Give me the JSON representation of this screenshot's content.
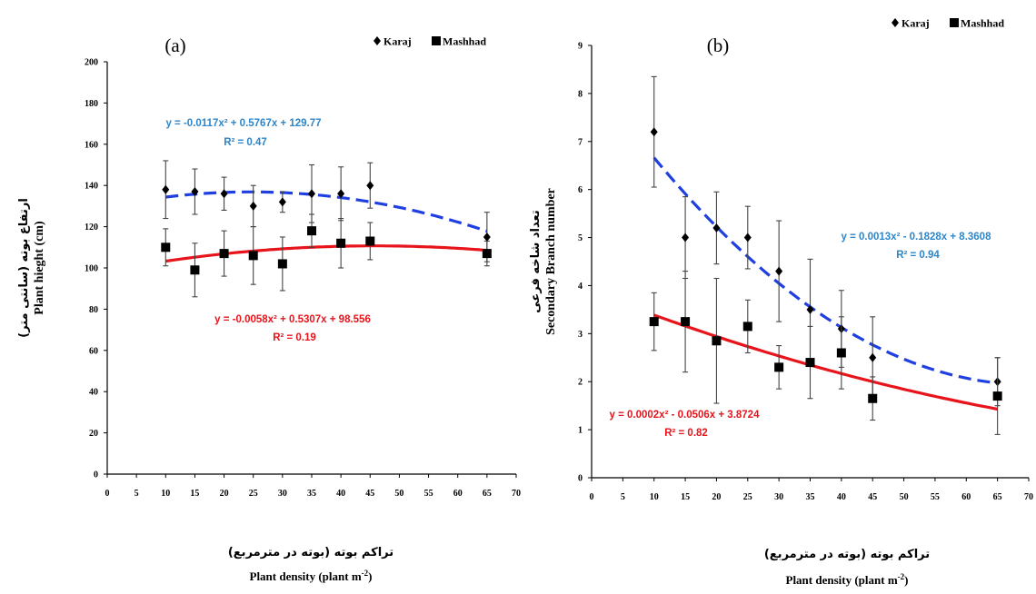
{
  "chart_data": [
    {
      "type": "scatter",
      "panel_label": "(a)",
      "legend": [
        "Karaj",
        "Mashhad"
      ],
      "legend_position": "top-right",
      "xlabel_fa": "تراکم بوته (بوته در مترمربع)",
      "xlabel": "Plant density (plant m",
      "xlabel_sup": "-2",
      "xlabel_tail": ")",
      "ylabel_fa": "ارتفاع بوته (سانتی متر)",
      "ylabel": "Plant hieght (cm)",
      "xlim": [
        0,
        70
      ],
      "ylim": [
        0,
        200
      ],
      "xticks": [
        0,
        5,
        10,
        15,
        20,
        25,
        30,
        35,
        40,
        45,
        50,
        55,
        60,
        65,
        70
      ],
      "yticks": [
        0,
        20,
        40,
        60,
        80,
        100,
        120,
        140,
        160,
        180,
        200
      ],
      "series": [
        {
          "name": "Karaj",
          "marker": "diamond",
          "color": "#000000",
          "x": [
            10,
            15,
            20,
            25,
            30,
            35,
            40,
            45,
            65
          ],
          "y": [
            138,
            137,
            136,
            130,
            132,
            136,
            136,
            140,
            115
          ],
          "err": [
            14,
            11,
            8,
            10,
            5,
            14,
            13,
            11,
            12
          ],
          "trend": {
            "a": -0.0117,
            "b": 0.5767,
            "c": 129.77,
            "color": "#1f3fe0",
            "style": "dashed"
          },
          "equation": "y = -0.0117x² + 0.5767x + 129.77",
          "r2": "R² = 0.47",
          "equation_color": "#2e86c8"
        },
        {
          "name": "Mashhad",
          "marker": "square",
          "color": "#000000",
          "x": [
            10,
            15,
            20,
            25,
            30,
            35,
            40,
            45,
            65
          ],
          "y": [
            110,
            99,
            107,
            106,
            102,
            118,
            112,
            113,
            107
          ],
          "err": [
            9,
            13,
            11,
            14,
            13,
            8,
            12,
            9,
            6
          ],
          "trend": {
            "a": -0.0058,
            "b": 0.5307,
            "c": 98.556,
            "color": "#e8141b",
            "style": "solid"
          },
          "equation": "y = -0.0058x² + 0.5307x + 98.556",
          "r2": "R² = 0.19",
          "equation_color": "#e8141b"
        }
      ]
    },
    {
      "type": "scatter",
      "panel_label": "(b)",
      "legend": [
        "Karaj",
        "Mashhad"
      ],
      "legend_position": "top-right",
      "xlabel_fa": "تراکم بوته (بوته در مترمربع)",
      "xlabel": "Plant density (plant m",
      "xlabel_sup": "-2",
      "xlabel_tail": ")",
      "ylabel_fa": "تعداد شاخه فرعی",
      "ylabel": "Secondary Branch number",
      "xlim": [
        0,
        70
      ],
      "ylim": [
        0,
        9
      ],
      "xticks": [
        0,
        5,
        10,
        15,
        20,
        25,
        30,
        35,
        40,
        45,
        50,
        55,
        60,
        65,
        70
      ],
      "yticks": [
        0,
        1,
        2,
        3,
        4,
        5,
        6,
        7,
        8,
        9
      ],
      "series": [
        {
          "name": "Karaj",
          "marker": "diamond",
          "color": "#000000",
          "x": [
            10,
            15,
            20,
            25,
            30,
            35,
            40,
            45,
            65
          ],
          "y": [
            7.2,
            5.0,
            5.2,
            5.0,
            4.3,
            3.5,
            3.1,
            2.5,
            2.0
          ],
          "err": [
            1.15,
            0.85,
            0.75,
            0.65,
            1.05,
            1.05,
            0.8,
            0.85,
            0.5
          ],
          "trend": {
            "a": 0.0013,
            "b": -0.1828,
            "c": 8.3608,
            "color": "#1f3fe0",
            "style": "dashed"
          },
          "equation": "y = 0.0013x² - 0.1828x + 8.3608",
          "r2": "R² = 0.94",
          "equation_color": "#2e86c8"
        },
        {
          "name": "Mashhad",
          "marker": "square",
          "color": "#000000",
          "x": [
            10,
            15,
            20,
            25,
            30,
            35,
            40,
            45,
            65
          ],
          "y": [
            3.25,
            3.25,
            2.85,
            3.15,
            2.3,
            2.4,
            2.6,
            1.65,
            1.7
          ],
          "err": [
            0.6,
            1.05,
            1.3,
            0.55,
            0.45,
            0.75,
            0.75,
            0.45,
            0.8
          ],
          "trend": {
            "a": 0.0002,
            "b": -0.0506,
            "c": 3.8724,
            "color": "#e8141b",
            "style": "solid"
          },
          "equation": "y = 0.0002x² - 0.0506x + 3.8724",
          "r2": "R² = 0.82",
          "equation_color": "#e8141b"
        }
      ]
    }
  ]
}
